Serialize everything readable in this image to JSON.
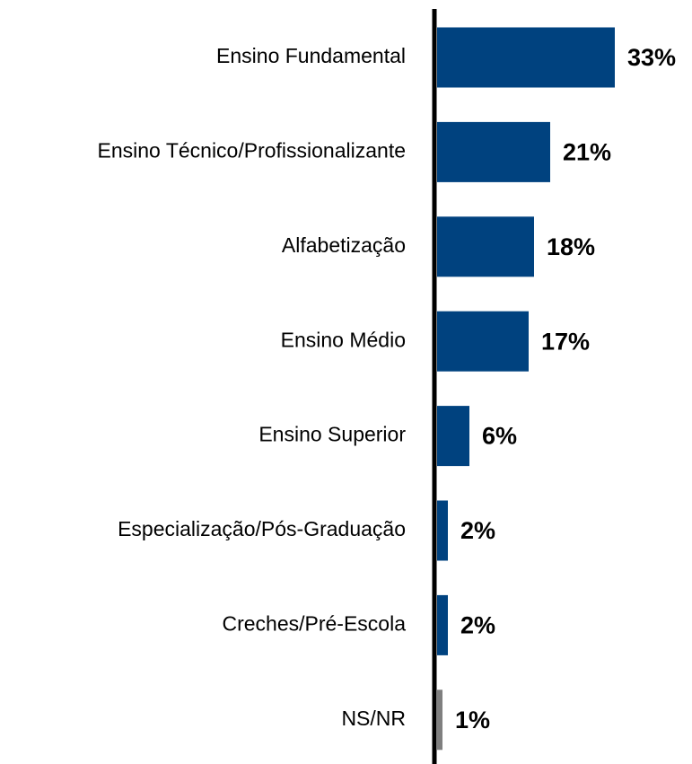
{
  "chart_data": {
    "type": "bar",
    "orientation": "horizontal",
    "categories": [
      "Ensino Fundamental",
      "Ensino Técnico/Profissionalizante",
      "Alfabetização",
      "Ensino Médio",
      "Ensino Superior",
      "Especialização/Pós-Graduação",
      "Creches/Pré-Escola",
      "NS/NR"
    ],
    "values": [
      33,
      21,
      18,
      17,
      6,
      2,
      2,
      1
    ],
    "value_labels": [
      "33%",
      "21%",
      "18%",
      "17%",
      "6%",
      "2%",
      "2%",
      "1%"
    ],
    "colors": [
      "#00427f",
      "#00427f",
      "#00427f",
      "#00427f",
      "#00427f",
      "#00427f",
      "#00427f",
      "#7f7f7f"
    ]
  }
}
